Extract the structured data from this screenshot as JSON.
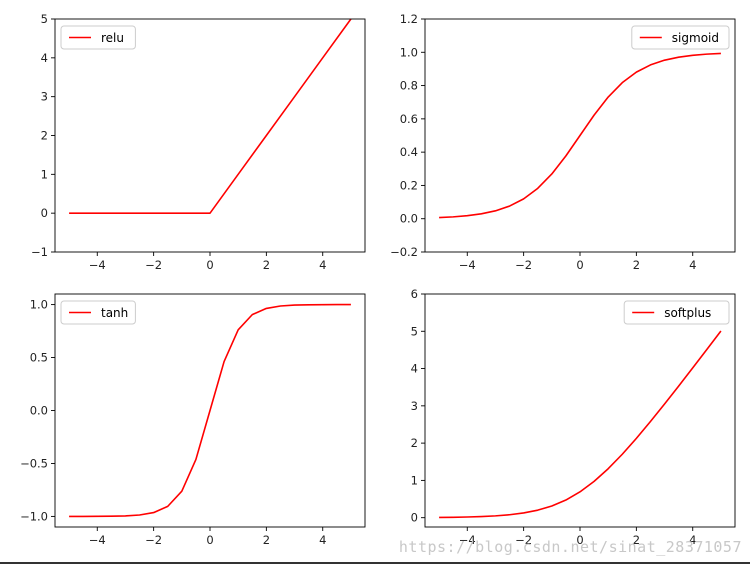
{
  "watermark": "https://blog.csdn.net/sinat_28371057",
  "colors": {
    "line": "#ff0000",
    "axes": "#000000",
    "background": "#ffffff"
  },
  "chart_data": [
    {
      "type": "line",
      "title": "",
      "xlabel": "",
      "ylabel": "",
      "xlim": [
        -5.5,
        5.5
      ],
      "ylim": [
        -1,
        5
      ],
      "xticks": [
        -4,
        -2,
        0,
        2,
        4
      ],
      "xtick_labels": [
        "−4",
        "−2",
        "0",
        "2",
        "4"
      ],
      "yticks": [
        -1,
        0,
        1,
        2,
        3,
        4,
        5
      ],
      "ytick_labels": [
        "−1",
        "0",
        "1",
        "2",
        "3",
        "4",
        "5"
      ],
      "legend": "upper-left",
      "grid": false,
      "series": [
        {
          "name": "relu",
          "color": "#ff0000",
          "x": [
            -5,
            -4,
            -3,
            -2,
            -1,
            0,
            1,
            2,
            3,
            4,
            5
          ],
          "y": [
            0,
            0,
            0,
            0,
            0,
            0,
            1,
            2,
            3,
            4,
            5
          ]
        }
      ]
    },
    {
      "type": "line",
      "title": "",
      "xlabel": "",
      "ylabel": "",
      "xlim": [
        -5.5,
        5.5
      ],
      "ylim": [
        -0.2,
        1.2
      ],
      "xticks": [
        -4,
        -2,
        0,
        2,
        4
      ],
      "xtick_labels": [
        "−4",
        "−2",
        "0",
        "2",
        "4"
      ],
      "yticks": [
        -0.2,
        0.0,
        0.2,
        0.4,
        0.6,
        0.8,
        1.0,
        1.2
      ],
      "ytick_labels": [
        "−0.2",
        "0.0",
        "0.2",
        "0.4",
        "0.6",
        "0.8",
        "1.0",
        "1.2"
      ],
      "legend": "upper-right",
      "grid": false,
      "series": [
        {
          "name": "sigmoid",
          "color": "#ff0000",
          "x": [
            -5,
            -4.5,
            -4,
            -3.5,
            -3,
            -2.5,
            -2,
            -1.5,
            -1,
            -0.5,
            0,
            0.5,
            1,
            1.5,
            2,
            2.5,
            3,
            3.5,
            4,
            4.5,
            5
          ],
          "y": [
            0.0067,
            0.011,
            0.018,
            0.0293,
            0.0474,
            0.0759,
            0.1192,
            0.1824,
            0.2689,
            0.3775,
            0.5,
            0.6225,
            0.7311,
            0.8176,
            0.8808,
            0.9241,
            0.9526,
            0.9707,
            0.982,
            0.989,
            0.9933
          ]
        }
      ]
    },
    {
      "type": "line",
      "title": "",
      "xlabel": "",
      "ylabel": "",
      "xlim": [
        -5.5,
        5.5
      ],
      "ylim": [
        -1.1,
        1.1
      ],
      "xticks": [
        -4,
        -2,
        0,
        2,
        4
      ],
      "xtick_labels": [
        "−4",
        "−2",
        "0",
        "2",
        "4"
      ],
      "yticks": [
        -1.0,
        -0.5,
        0.0,
        0.5,
        1.0
      ],
      "ytick_labels": [
        "−1.0",
        "−0.5",
        "0.0",
        "0.5",
        "1.0"
      ],
      "legend": "upper-left",
      "grid": false,
      "series": [
        {
          "name": "tanh",
          "color": "#ff0000",
          "x": [
            -5,
            -4.5,
            -4,
            -3.5,
            -3,
            -2.5,
            -2,
            -1.5,
            -1,
            -0.5,
            0,
            0.5,
            1,
            1.5,
            2,
            2.5,
            3,
            3.5,
            4,
            4.5,
            5
          ],
          "y": [
            -0.9999,
            -0.9998,
            -0.9993,
            -0.9982,
            -0.9951,
            -0.9866,
            -0.964,
            -0.9051,
            -0.7616,
            -0.4621,
            0,
            0.4621,
            0.7616,
            0.9051,
            0.964,
            0.9866,
            0.9951,
            0.9982,
            0.9993,
            0.9998,
            0.9999
          ]
        }
      ]
    },
    {
      "type": "line",
      "title": "",
      "xlabel": "",
      "ylabel": "",
      "xlim": [
        -5.5,
        5.5
      ],
      "ylim": [
        -0.25,
        6
      ],
      "xticks": [
        -4,
        -2,
        0,
        2,
        4
      ],
      "xtick_labels": [
        "−4",
        "−2",
        "0",
        "2",
        "4"
      ],
      "yticks": [
        0,
        1,
        2,
        3,
        4,
        5,
        6
      ],
      "ytick_labels": [
        "0",
        "1",
        "2",
        "3",
        "4",
        "5",
        "6"
      ],
      "legend": "upper-right",
      "grid": false,
      "series": [
        {
          "name": "softplus",
          "color": "#ff0000",
          "x": [
            -5,
            -4.5,
            -4,
            -3.5,
            -3,
            -2.5,
            -2,
            -1.5,
            -1,
            -0.5,
            0,
            0.5,
            1,
            1.5,
            2,
            2.5,
            3,
            3.5,
            4,
            4.5,
            5
          ],
          "y": [
            0.0067,
            0.011,
            0.0181,
            0.0298,
            0.0486,
            0.0789,
            0.1269,
            0.2014,
            0.3133,
            0.4741,
            0.6931,
            0.9741,
            1.3133,
            1.7014,
            2.1269,
            2.5789,
            3.0486,
            3.5298,
            4.0181,
            4.511,
            5.0067
          ]
        }
      ]
    }
  ]
}
